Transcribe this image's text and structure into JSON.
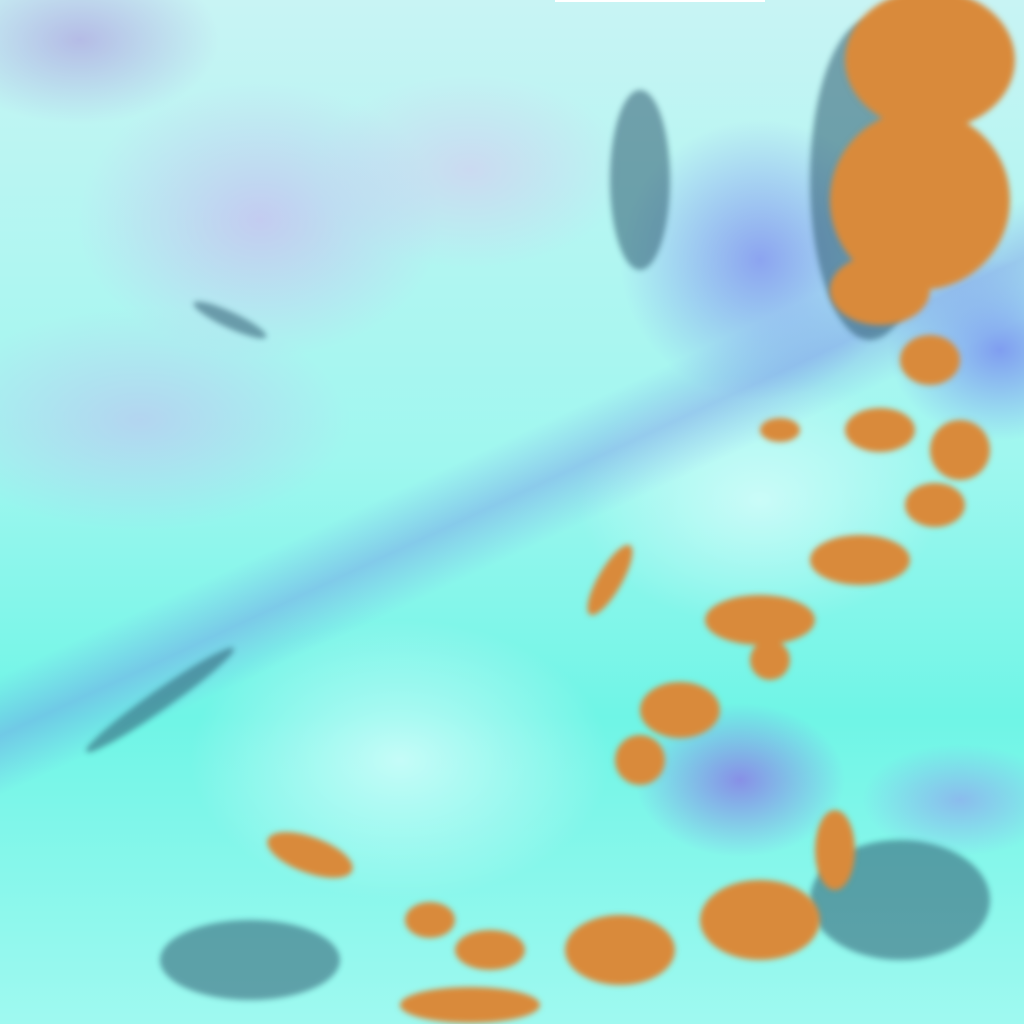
{
  "image": {
    "kind": "false-color satellite imagery",
    "colors": {
      "background_cyan": "#8ff8ee",
      "haze_white": "#e8ffff",
      "lavender": "#c8bef0",
      "blue_violet": "#7a78e8",
      "orange_cloud": "#d98a3a",
      "dark_cloud_edge": "#2a4a6a"
    }
  }
}
